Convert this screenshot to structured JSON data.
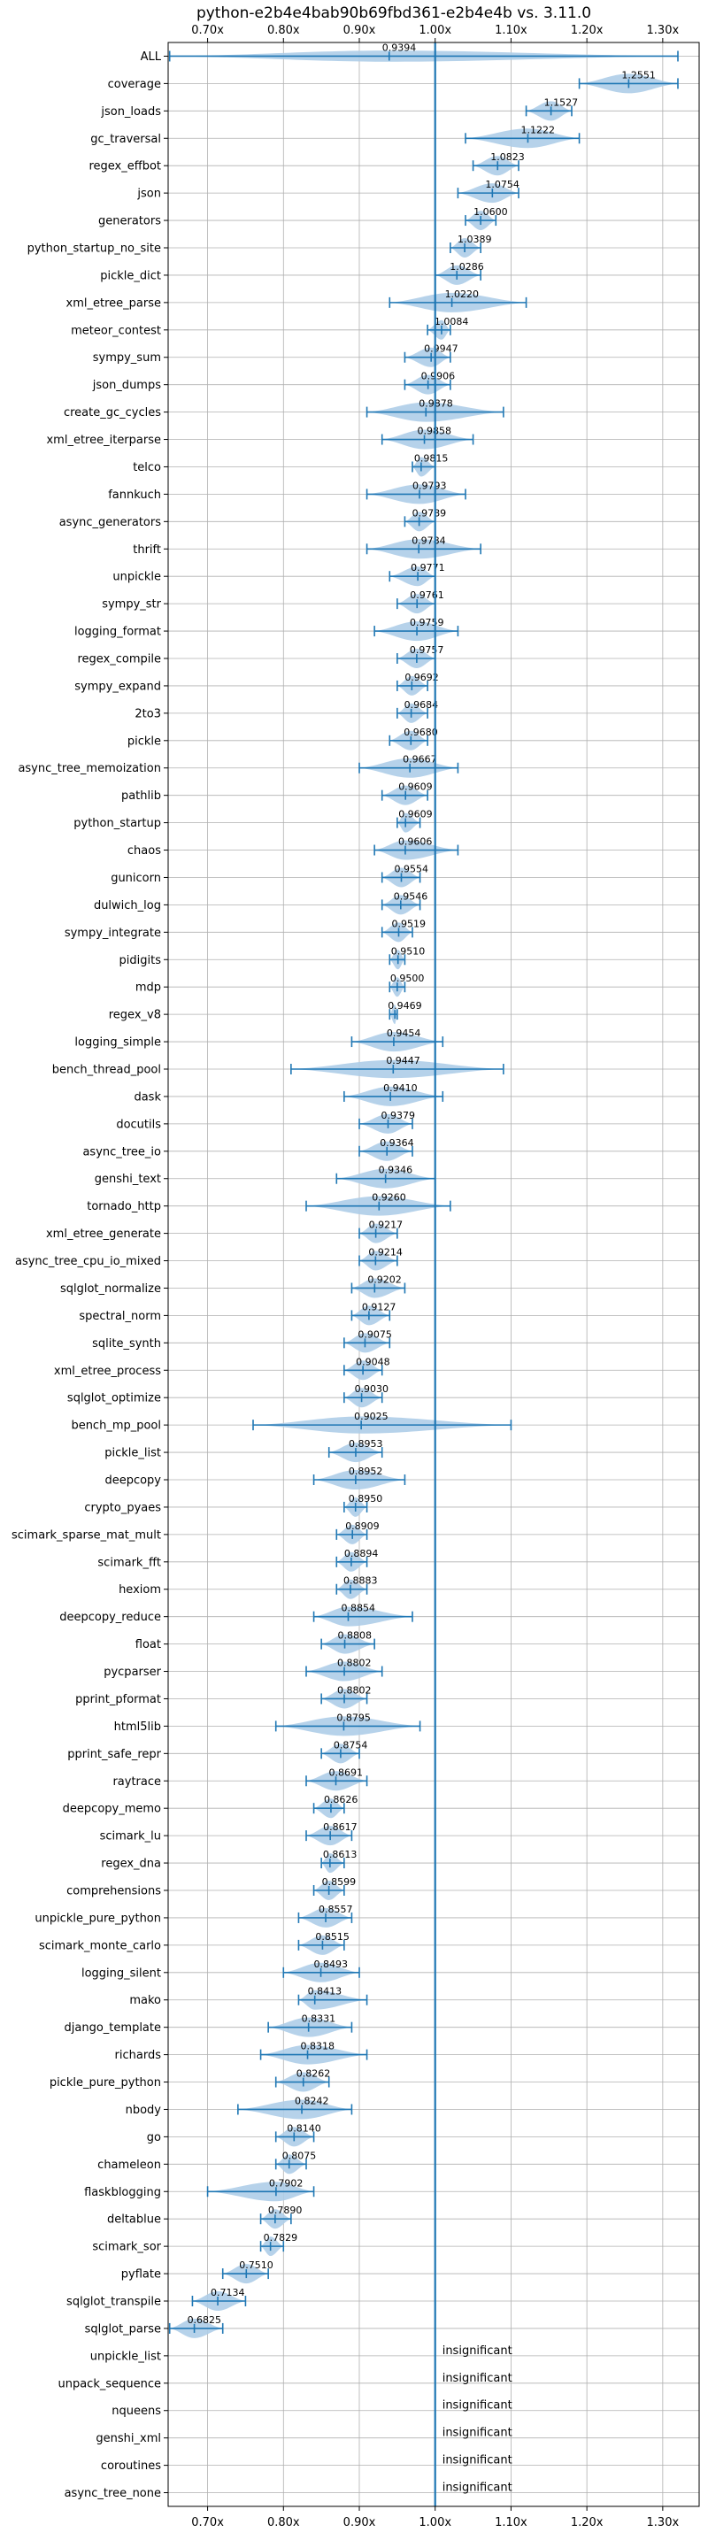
{
  "chart_data": {
    "type": "violin",
    "title": "python-e2b4e4bab90b69fbd361-e2b4e4b vs. 3.11.0",
    "xlabel": "",
    "ylabel": "",
    "xlim": [
      0.648,
      1.348
    ],
    "xticks": [
      0.7,
      0.8,
      0.9,
      1.0,
      1.1,
      1.2,
      1.3
    ],
    "xtick_labels": [
      "0.70x",
      "0.80x",
      "0.90x",
      "1.00x",
      "1.10x",
      "1.20x",
      "1.30x"
    ],
    "reference_line": 1.0,
    "grid": true,
    "color": "#1f77b4",
    "violin_color": "#aecde8",
    "insignificant_text": "insignificant",
    "benchmarks": [
      {
        "name": "ALL",
        "value": 0.9394,
        "min": 0.65,
        "max": 1.32
      },
      {
        "name": "coverage",
        "value": 1.2551,
        "min": 1.19,
        "max": 1.32
      },
      {
        "name": "json_loads",
        "value": 1.1527,
        "min": 1.12,
        "max": 1.18
      },
      {
        "name": "gc_traversal",
        "value": 1.1222,
        "min": 1.04,
        "max": 1.19
      },
      {
        "name": "regex_effbot",
        "value": 1.0823,
        "min": 1.05,
        "max": 1.11
      },
      {
        "name": "json",
        "value": 1.0754,
        "min": 1.03,
        "max": 1.11
      },
      {
        "name": "generators",
        "value": 1.06,
        "min": 1.04,
        "max": 1.08
      },
      {
        "name": "python_startup_no_site",
        "value": 1.0389,
        "min": 1.02,
        "max": 1.06
      },
      {
        "name": "pickle_dict",
        "value": 1.0286,
        "min": 1.0,
        "max": 1.06
      },
      {
        "name": "xml_etree_parse",
        "value": 1.022,
        "min": 0.94,
        "max": 1.12
      },
      {
        "name": "meteor_contest",
        "value": 1.0084,
        "min": 0.99,
        "max": 1.02
      },
      {
        "name": "sympy_sum",
        "value": 0.9947,
        "min": 0.96,
        "max": 1.02
      },
      {
        "name": "json_dumps",
        "value": 0.9906,
        "min": 0.96,
        "max": 1.02
      },
      {
        "name": "create_gc_cycles",
        "value": 0.9878,
        "min": 0.91,
        "max": 1.09
      },
      {
        "name": "xml_etree_iterparse",
        "value": 0.9858,
        "min": 0.93,
        "max": 1.05
      },
      {
        "name": "telco",
        "value": 0.9815,
        "min": 0.97,
        "max": 1.0
      },
      {
        "name": "fannkuch",
        "value": 0.9793,
        "min": 0.91,
        "max": 1.04
      },
      {
        "name": "async_generators",
        "value": 0.9789,
        "min": 0.96,
        "max": 1.0
      },
      {
        "name": "thrift",
        "value": 0.9784,
        "min": 0.91,
        "max": 1.06
      },
      {
        "name": "unpickle",
        "value": 0.9771,
        "min": 0.94,
        "max": 1.0
      },
      {
        "name": "sympy_str",
        "value": 0.9761,
        "min": 0.95,
        "max": 1.0
      },
      {
        "name": "logging_format",
        "value": 0.9759,
        "min": 0.92,
        "max": 1.03
      },
      {
        "name": "regex_compile",
        "value": 0.9757,
        "min": 0.95,
        "max": 1.0
      },
      {
        "name": "sympy_expand",
        "value": 0.9692,
        "min": 0.95,
        "max": 0.99
      },
      {
        "name": "2to3",
        "value": 0.9684,
        "min": 0.95,
        "max": 0.99
      },
      {
        "name": "pickle",
        "value": 0.968,
        "min": 0.94,
        "max": 0.99
      },
      {
        "name": "async_tree_memoization",
        "value": 0.9667,
        "min": 0.9,
        "max": 1.03
      },
      {
        "name": "pathlib",
        "value": 0.9609,
        "min": 0.93,
        "max": 0.99
      },
      {
        "name": "python_startup",
        "value": 0.9609,
        "min": 0.95,
        "max": 0.98
      },
      {
        "name": "chaos",
        "value": 0.9606,
        "min": 0.92,
        "max": 1.03
      },
      {
        "name": "gunicorn",
        "value": 0.9554,
        "min": 0.93,
        "max": 0.98
      },
      {
        "name": "dulwich_log",
        "value": 0.9546,
        "min": 0.93,
        "max": 0.98
      },
      {
        "name": "sympy_integrate",
        "value": 0.9519,
        "min": 0.93,
        "max": 0.97
      },
      {
        "name": "pidigits",
        "value": 0.951,
        "min": 0.94,
        "max": 0.96
      },
      {
        "name": "mdp",
        "value": 0.95,
        "min": 0.94,
        "max": 0.96
      },
      {
        "name": "regex_v8",
        "value": 0.9469,
        "min": 0.94,
        "max": 0.95
      },
      {
        "name": "logging_simple",
        "value": 0.9454,
        "min": 0.89,
        "max": 1.01
      },
      {
        "name": "bench_thread_pool",
        "value": 0.9447,
        "min": 0.81,
        "max": 1.09
      },
      {
        "name": "dask",
        "value": 0.941,
        "min": 0.88,
        "max": 1.01
      },
      {
        "name": "docutils",
        "value": 0.9379,
        "min": 0.9,
        "max": 0.97
      },
      {
        "name": "async_tree_io",
        "value": 0.9364,
        "min": 0.9,
        "max": 0.97
      },
      {
        "name": "genshi_text",
        "value": 0.9346,
        "min": 0.87,
        "max": 1.0
      },
      {
        "name": "tornado_http",
        "value": 0.926,
        "min": 0.83,
        "max": 1.02
      },
      {
        "name": "xml_etree_generate",
        "value": 0.9217,
        "min": 0.9,
        "max": 0.95
      },
      {
        "name": "async_tree_cpu_io_mixed",
        "value": 0.9214,
        "min": 0.9,
        "max": 0.95
      },
      {
        "name": "sqlglot_normalize",
        "value": 0.9202,
        "min": 0.89,
        "max": 0.96
      },
      {
        "name": "spectral_norm",
        "value": 0.9127,
        "min": 0.89,
        "max": 0.94
      },
      {
        "name": "sqlite_synth",
        "value": 0.9075,
        "min": 0.88,
        "max": 0.94
      },
      {
        "name": "xml_etree_process",
        "value": 0.9048,
        "min": 0.88,
        "max": 0.93
      },
      {
        "name": "sqlglot_optimize",
        "value": 0.903,
        "min": 0.88,
        "max": 0.93
      },
      {
        "name": "bench_mp_pool",
        "value": 0.9025,
        "min": 0.76,
        "max": 1.1
      },
      {
        "name": "pickle_list",
        "value": 0.8953,
        "min": 0.86,
        "max": 0.93
      },
      {
        "name": "deepcopy",
        "value": 0.8952,
        "min": 0.84,
        "max": 0.96
      },
      {
        "name": "crypto_pyaes",
        "value": 0.895,
        "min": 0.88,
        "max": 0.91
      },
      {
        "name": "scimark_sparse_mat_mult",
        "value": 0.8909,
        "min": 0.87,
        "max": 0.91
      },
      {
        "name": "scimark_fft",
        "value": 0.8894,
        "min": 0.87,
        "max": 0.91
      },
      {
        "name": "hexiom",
        "value": 0.8883,
        "min": 0.87,
        "max": 0.91
      },
      {
        "name": "deepcopy_reduce",
        "value": 0.8854,
        "min": 0.84,
        "max": 0.97
      },
      {
        "name": "float",
        "value": 0.8808,
        "min": 0.85,
        "max": 0.92
      },
      {
        "name": "pycparser",
        "value": 0.8802,
        "min": 0.83,
        "max": 0.93
      },
      {
        "name": "pprint_pformat",
        "value": 0.8802,
        "min": 0.85,
        "max": 0.91
      },
      {
        "name": "html5lib",
        "value": 0.8795,
        "min": 0.79,
        "max": 0.98
      },
      {
        "name": "pprint_safe_repr",
        "value": 0.8754,
        "min": 0.85,
        "max": 0.9
      },
      {
        "name": "raytrace",
        "value": 0.8691,
        "min": 0.83,
        "max": 0.91
      },
      {
        "name": "deepcopy_memo",
        "value": 0.8626,
        "min": 0.84,
        "max": 0.88
      },
      {
        "name": "scimark_lu",
        "value": 0.8617,
        "min": 0.83,
        "max": 0.89
      },
      {
        "name": "regex_dna",
        "value": 0.8613,
        "min": 0.85,
        "max": 0.88
      },
      {
        "name": "comprehensions",
        "value": 0.8599,
        "min": 0.84,
        "max": 0.88
      },
      {
        "name": "unpickle_pure_python",
        "value": 0.8557,
        "min": 0.82,
        "max": 0.89
      },
      {
        "name": "scimark_monte_carlo",
        "value": 0.8515,
        "min": 0.82,
        "max": 0.88
      },
      {
        "name": "logging_silent",
        "value": 0.8493,
        "min": 0.8,
        "max": 0.9
      },
      {
        "name": "mako",
        "value": 0.8413,
        "min": 0.82,
        "max": 0.91
      },
      {
        "name": "django_template",
        "value": 0.8331,
        "min": 0.78,
        "max": 0.89
      },
      {
        "name": "richards",
        "value": 0.8318,
        "min": 0.77,
        "max": 0.91
      },
      {
        "name": "pickle_pure_python",
        "value": 0.8262,
        "min": 0.79,
        "max": 0.86
      },
      {
        "name": "nbody",
        "value": 0.8242,
        "min": 0.74,
        "max": 0.89
      },
      {
        "name": "go",
        "value": 0.814,
        "min": 0.79,
        "max": 0.84
      },
      {
        "name": "chameleon",
        "value": 0.8075,
        "min": 0.79,
        "max": 0.83
      },
      {
        "name": "flaskblogging",
        "value": 0.7902,
        "min": 0.7,
        "max": 0.84
      },
      {
        "name": "deltablue",
        "value": 0.789,
        "min": 0.77,
        "max": 0.81
      },
      {
        "name": "scimark_sor",
        "value": 0.7829,
        "min": 0.77,
        "max": 0.8
      },
      {
        "name": "pyflate",
        "value": 0.751,
        "min": 0.72,
        "max": 0.78
      },
      {
        "name": "sqlglot_transpile",
        "value": 0.7134,
        "min": 0.68,
        "max": 0.75
      },
      {
        "name": "sqlglot_parse",
        "value": 0.6825,
        "min": 0.65,
        "max": 0.72
      },
      {
        "name": "unpickle_list",
        "value": null,
        "insignificant": true
      },
      {
        "name": "unpack_sequence",
        "value": null,
        "insignificant": true
      },
      {
        "name": "nqueens",
        "value": null,
        "insignificant": true
      },
      {
        "name": "genshi_xml",
        "value": null,
        "insignificant": true
      },
      {
        "name": "coroutines",
        "value": null,
        "insignificant": true
      },
      {
        "name": "async_tree_none",
        "value": null,
        "insignificant": true
      }
    ]
  }
}
